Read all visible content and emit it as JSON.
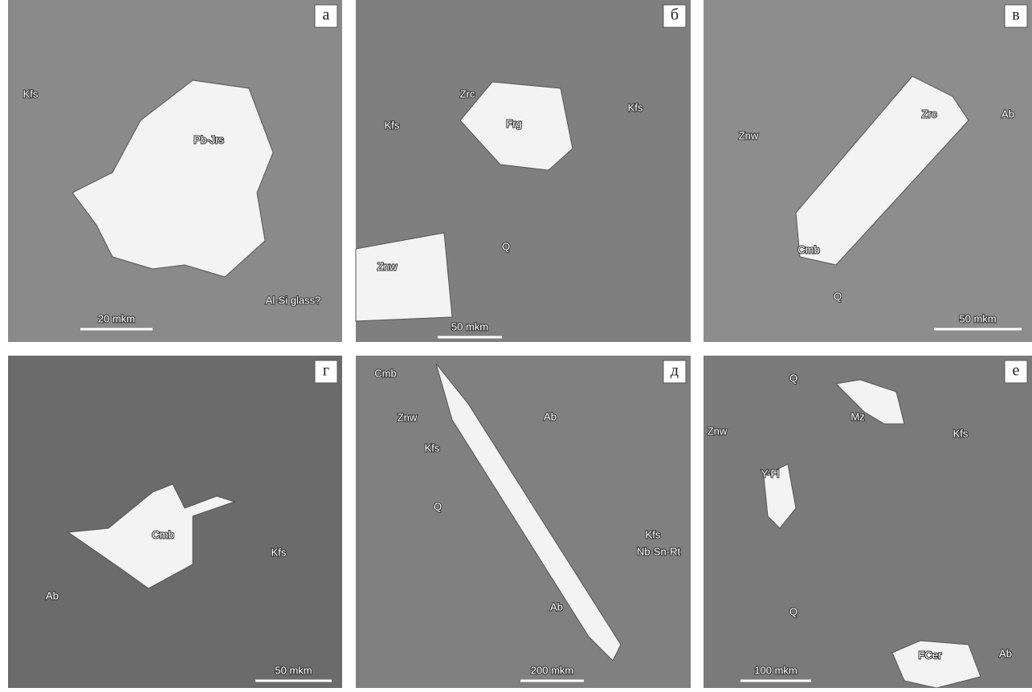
{
  "panels": [
    {
      "letter": "а",
      "labels": [
        "Kfs",
        "Pb-Jrs",
        "Al-Si glass?"
      ],
      "scale": "20 mkm"
    },
    {
      "letter": "б",
      "labels": [
        "Zrc",
        "Frg",
        "Kfs",
        "Kfs",
        "Q",
        "Znw"
      ],
      "scale": "50 mkm"
    },
    {
      "letter": "в",
      "labels": [
        "Zrc",
        "Ab",
        "Znw",
        "Cmb",
        "Q"
      ],
      "scale": "50 mkm"
    },
    {
      "letter": "г",
      "labels": [
        "Cmb",
        "Ab",
        "Kfs"
      ],
      "scale": "50 mkm"
    },
    {
      "letter": "д",
      "labels": [
        "Cmb",
        "Znw",
        "Ab",
        "Kfs",
        "Q",
        "Kfs",
        "Nb-Sn-Rt",
        "Ab"
      ],
      "scale": "200 mkm"
    },
    {
      "letter": "е",
      "labels": [
        "Q",
        "Znw",
        "Mz",
        "Kfs",
        "Y-Fl",
        "Q",
        "FCer",
        "Ab"
      ],
      "scale": "100 mkm"
    }
  ]
}
